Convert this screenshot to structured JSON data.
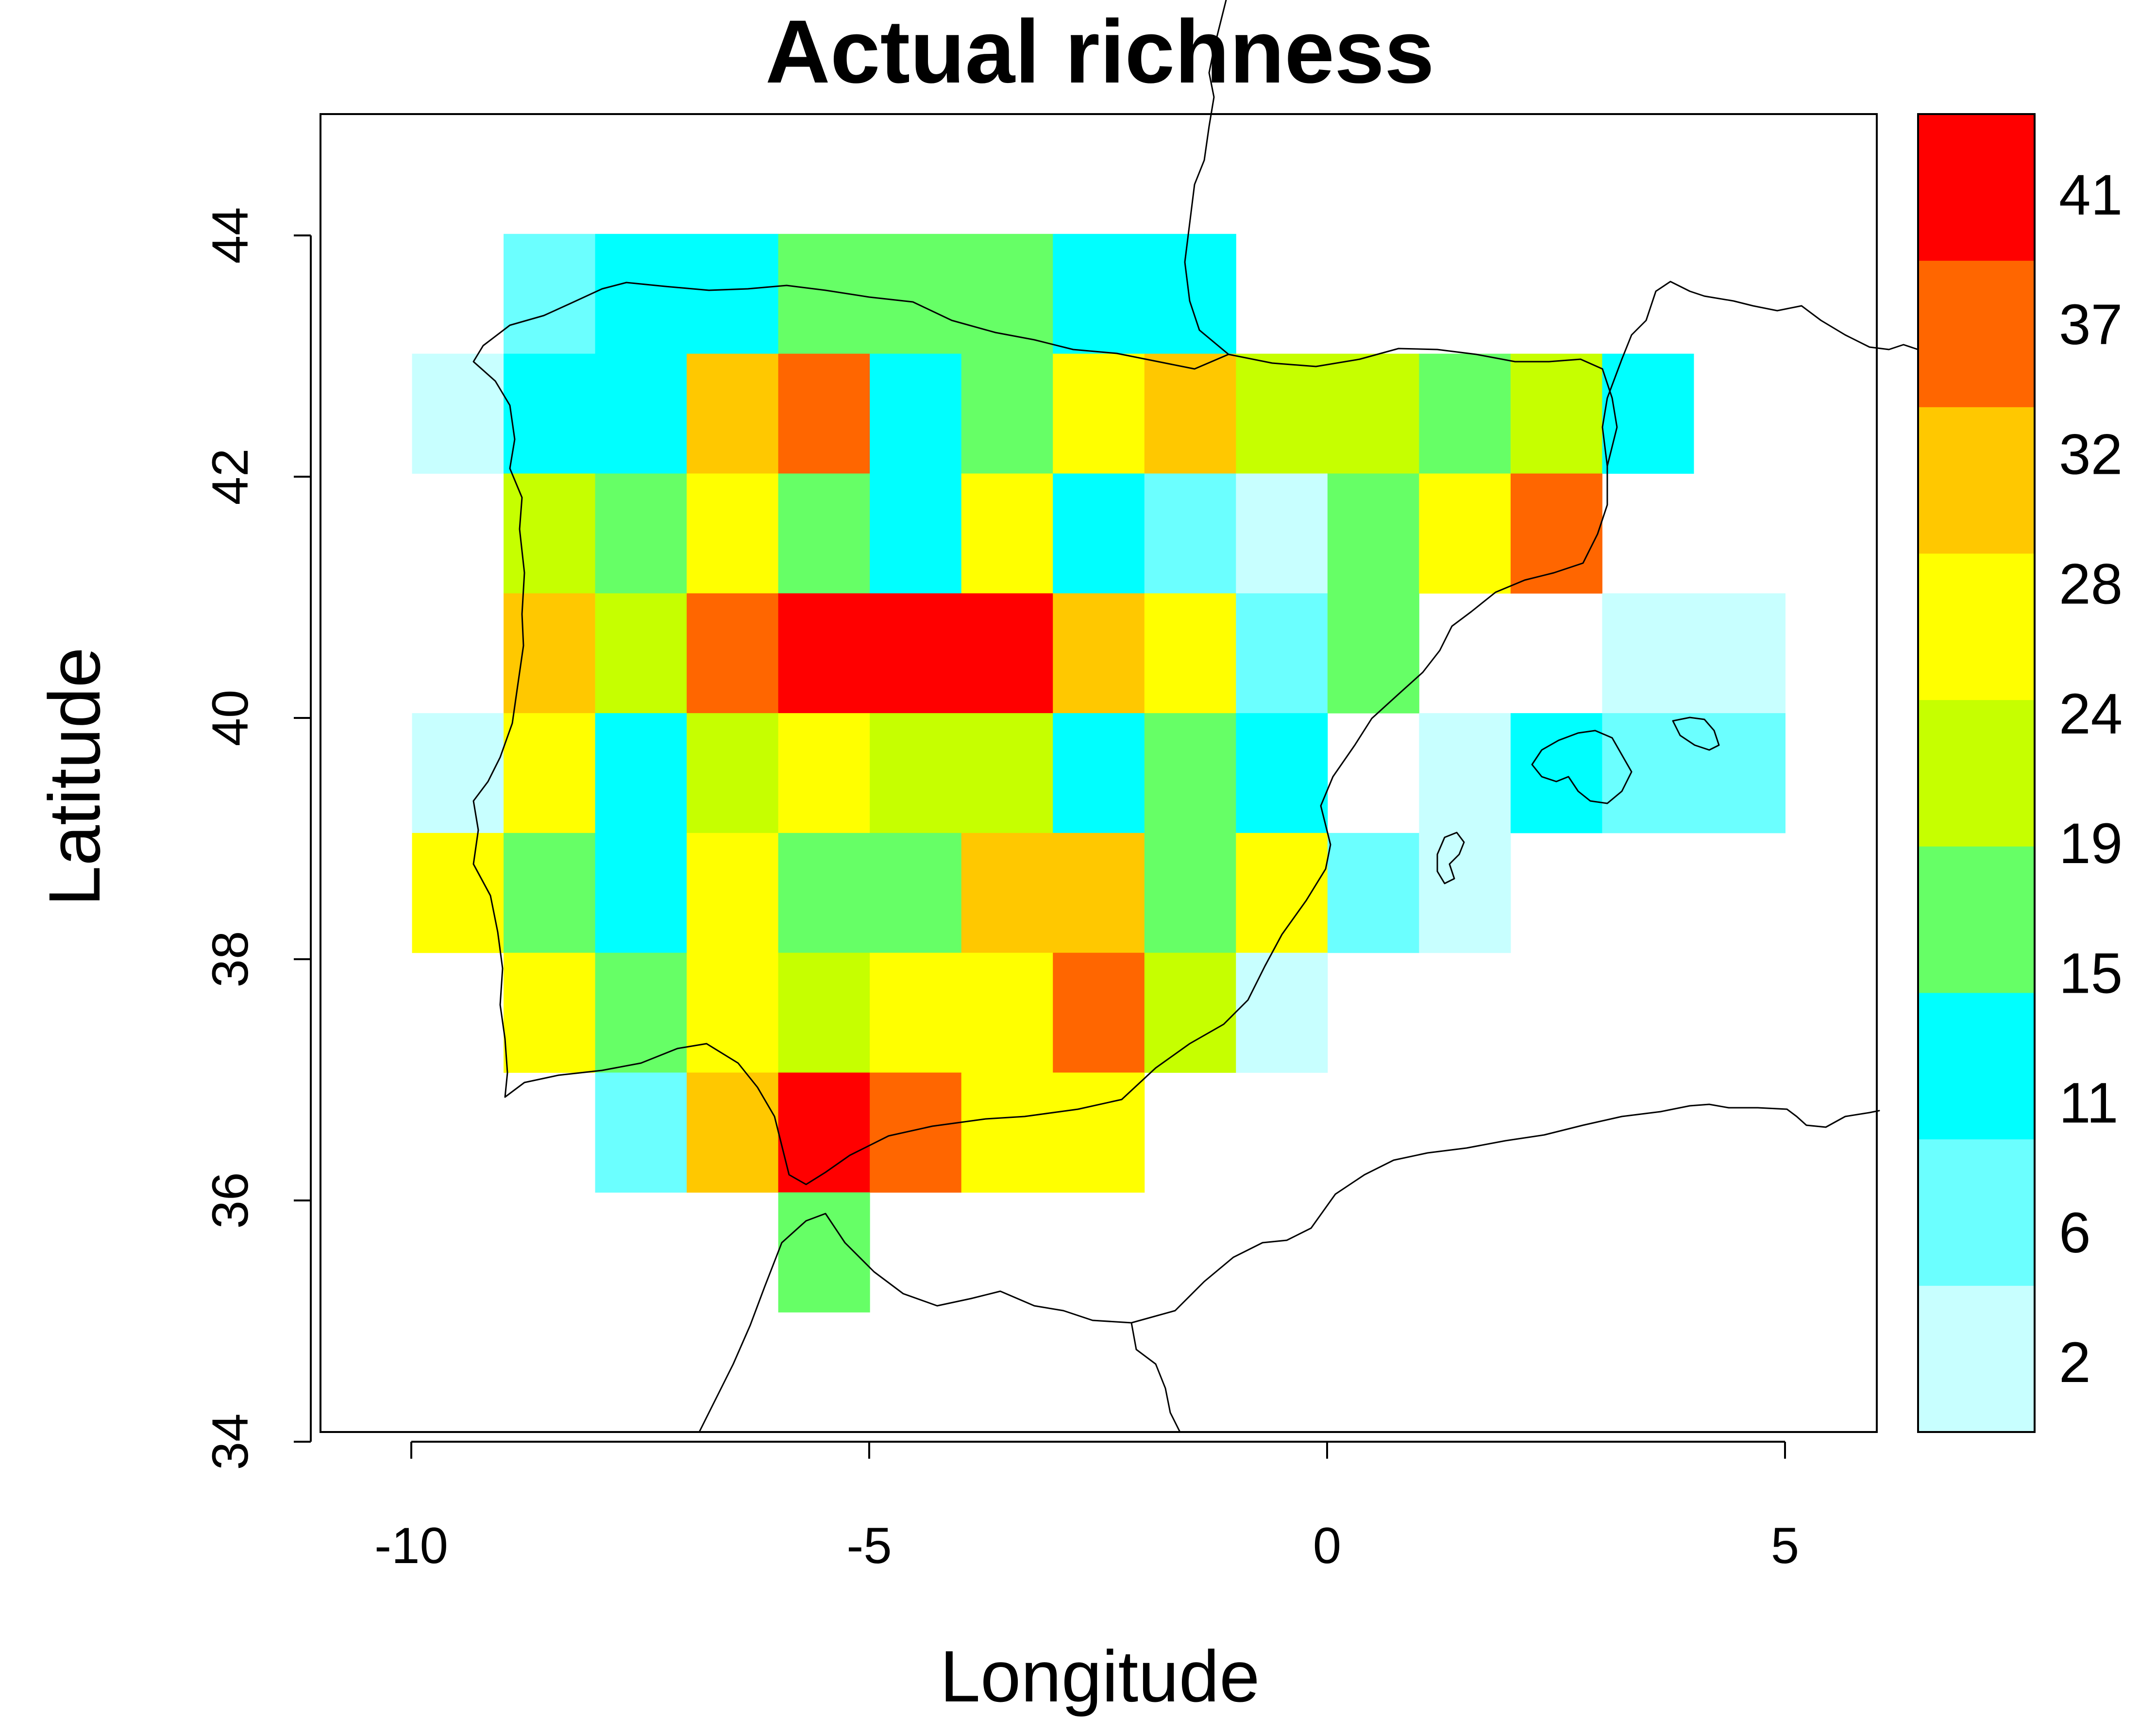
{
  "title": "Actual richness",
  "x_axis": {
    "label": "Longitude",
    "range": [
      -11,
      6
    ],
    "ticks": [
      "-10",
      "-5",
      "0",
      "5"
    ]
  },
  "y_axis": {
    "label": "Latitude",
    "range": [
      34,
      45
    ],
    "ticks": [
      "34",
      "36",
      "38",
      "40",
      "42",
      "44"
    ]
  },
  "legend": {
    "position": "right",
    "labels": [
      "2",
      "6",
      "11",
      "15",
      "19",
      "24",
      "28",
      "32",
      "37",
      "41"
    ],
    "colors": [
      "#c8ffff",
      "#6bffff",
      "#00ffff",
      "#66ff66",
      "#c6ff00",
      "#ffff00",
      "#ffc800",
      "#ff6600",
      "#ff0000"
    ]
  },
  "chart_data": {
    "type": "heatmap",
    "title": "Actual richness",
    "xlabel": "Longitude",
    "ylabel": "Latitude",
    "xlim": [
      -11,
      6
    ],
    "ylim": [
      34,
      45
    ],
    "cell_size_deg": 1,
    "value_scale": "color class index 1-9 (1 = lowest, 9 = highest richness)",
    "class_breaks": [
      2,
      6,
      11,
      15,
      19,
      24,
      28,
      32,
      37,
      41
    ],
    "cells": [
      {
        "lon": -9,
        "lat": 43,
        "class": 2
      },
      {
        "lon": -8,
        "lat": 43,
        "class": 3
      },
      {
        "lon": -7,
        "lat": 43,
        "class": 3
      },
      {
        "lon": -6,
        "lat": 43,
        "class": 4
      },
      {
        "lon": -5,
        "lat": 43,
        "class": 4
      },
      {
        "lon": -4,
        "lat": 43,
        "class": 4
      },
      {
        "lon": -3,
        "lat": 43,
        "class": 3
      },
      {
        "lon": -2,
        "lat": 43,
        "class": 3
      },
      {
        "lon": -10,
        "lat": 42,
        "class": 1
      },
      {
        "lon": -9,
        "lat": 42,
        "class": 3
      },
      {
        "lon": -8,
        "lat": 42,
        "class": 3
      },
      {
        "lon": -7,
        "lat": 42,
        "class": 7
      },
      {
        "lon": -6,
        "lat": 42,
        "class": 8
      },
      {
        "lon": -5,
        "lat": 42,
        "class": 3
      },
      {
        "lon": -4,
        "lat": 42,
        "class": 4
      },
      {
        "lon": -3,
        "lat": 42,
        "class": 6
      },
      {
        "lon": -2,
        "lat": 42,
        "class": 7
      },
      {
        "lon": -1,
        "lat": 42,
        "class": 5
      },
      {
        "lon": 0,
        "lat": 42,
        "class": 5
      },
      {
        "lon": 1,
        "lat": 42,
        "class": 4
      },
      {
        "lon": 2,
        "lat": 42,
        "class": 5
      },
      {
        "lon": 3,
        "lat": 42,
        "class": 3
      },
      {
        "lon": -9,
        "lat": 41,
        "class": 5
      },
      {
        "lon": -8,
        "lat": 41,
        "class": 4
      },
      {
        "lon": -7,
        "lat": 41,
        "class": 6
      },
      {
        "lon": -6,
        "lat": 41,
        "class": 4
      },
      {
        "lon": -5,
        "lat": 41,
        "class": 3
      },
      {
        "lon": -4,
        "lat": 41,
        "class": 6
      },
      {
        "lon": -3,
        "lat": 41,
        "class": 3
      },
      {
        "lon": -2,
        "lat": 41,
        "class": 2
      },
      {
        "lon": -1,
        "lat": 41,
        "class": 1
      },
      {
        "lon": 0,
        "lat": 41,
        "class": 4
      },
      {
        "lon": 1,
        "lat": 41,
        "class": 6
      },
      {
        "lon": 2,
        "lat": 41,
        "class": 8
      },
      {
        "lon": -9,
        "lat": 40,
        "class": 7
      },
      {
        "lon": -8,
        "lat": 40,
        "class": 5
      },
      {
        "lon": -7,
        "lat": 40,
        "class": 8
      },
      {
        "lon": -6,
        "lat": 40,
        "class": 9
      },
      {
        "lon": -5,
        "lat": 40,
        "class": 9
      },
      {
        "lon": -4,
        "lat": 40,
        "class": 9
      },
      {
        "lon": -3,
        "lat": 40,
        "class": 7
      },
      {
        "lon": -2,
        "lat": 40,
        "class": 6
      },
      {
        "lon": -1,
        "lat": 40,
        "class": 2
      },
      {
        "lon": 0,
        "lat": 40,
        "class": 4
      },
      {
        "lon": 3,
        "lat": 40,
        "class": 1
      },
      {
        "lon": 4,
        "lat": 40,
        "class": 1
      },
      {
        "lon": -10,
        "lat": 39,
        "class": 1
      },
      {
        "lon": -9,
        "lat": 39,
        "class": 6
      },
      {
        "lon": -8,
        "lat": 39,
        "class": 3
      },
      {
        "lon": -7,
        "lat": 39,
        "class": 5
      },
      {
        "lon": -6,
        "lat": 39,
        "class": 6
      },
      {
        "lon": -5,
        "lat": 39,
        "class": 5
      },
      {
        "lon": -4,
        "lat": 39,
        "class": 5
      },
      {
        "lon": -3,
        "lat": 39,
        "class": 3
      },
      {
        "lon": -2,
        "lat": 39,
        "class": 4
      },
      {
        "lon": -1,
        "lat": 39,
        "class": 3
      },
      {
        "lon": 1,
        "lat": 39,
        "class": 1
      },
      {
        "lon": 2,
        "lat": 39,
        "class": 3
      },
      {
        "lon": 3,
        "lat": 39,
        "class": 2
      },
      {
        "lon": 4,
        "lat": 39,
        "class": 2
      },
      {
        "lon": -10,
        "lat": 38,
        "class": 6
      },
      {
        "lon": -9,
        "lat": 38,
        "class": 4
      },
      {
        "lon": -8,
        "lat": 38,
        "class": 3
      },
      {
        "lon": -7,
        "lat": 38,
        "class": 6
      },
      {
        "lon": -6,
        "lat": 38,
        "class": 4
      },
      {
        "lon": -5,
        "lat": 38,
        "class": 4
      },
      {
        "lon": -4,
        "lat": 38,
        "class": 7
      },
      {
        "lon": -3,
        "lat": 38,
        "class": 7
      },
      {
        "lon": -2,
        "lat": 38,
        "class": 4
      },
      {
        "lon": -1,
        "lat": 38,
        "class": 6
      },
      {
        "lon": 0,
        "lat": 38,
        "class": 2
      },
      {
        "lon": 1,
        "lat": 38,
        "class": 1
      },
      {
        "lon": -9,
        "lat": 37,
        "class": 6
      },
      {
        "lon": -8,
        "lat": 37,
        "class": 4
      },
      {
        "lon": -7,
        "lat": 37,
        "class": 6
      },
      {
        "lon": -6,
        "lat": 37,
        "class": 5
      },
      {
        "lon": -5,
        "lat": 37,
        "class": 6
      },
      {
        "lon": -4,
        "lat": 37,
        "class": 6
      },
      {
        "lon": -3,
        "lat": 37,
        "class": 8
      },
      {
        "lon": -2,
        "lat": 37,
        "class": 5
      },
      {
        "lon": -1,
        "lat": 37,
        "class": 1
      },
      {
        "lon": -8,
        "lat": 36,
        "class": 2
      },
      {
        "lon": -7,
        "lat": 36,
        "class": 7
      },
      {
        "lon": -6,
        "lat": 36,
        "class": 9
      },
      {
        "lon": -5,
        "lat": 36,
        "class": 8
      },
      {
        "lon": -4,
        "lat": 36,
        "class": 6
      },
      {
        "lon": -3,
        "lat": 36,
        "class": 6
      },
      {
        "lon": -6,
        "lat": 35,
        "class": 4
      }
    ]
  }
}
